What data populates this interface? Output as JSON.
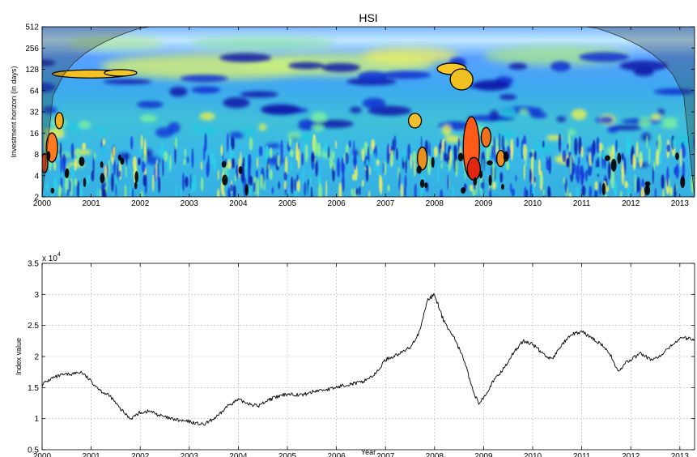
{
  "chart_data": [
    {
      "type": "heatmap",
      "title": "HSI",
      "xlabel": "",
      "ylabel": "Investment horizon (in days)",
      "xlim": [
        2000,
        2013.3
      ],
      "x_ticks": [
        "2000",
        "2001",
        "2002",
        "2003",
        "2004",
        "2005",
        "2006",
        "2007",
        "2008",
        "2009",
        "2010",
        "2011",
        "2012",
        "2013"
      ],
      "y_scale": "log2",
      "ylim": [
        2,
        512
      ],
      "y_ticks": [
        "2",
        "4",
        "8",
        "16",
        "32",
        "64",
        "128",
        "256",
        "512"
      ],
      "colormap": "jet",
      "cone_of_influence": true,
      "significant_regions": [
        {
          "year": 2000.1,
          "period": 10
        },
        {
          "year": 2000.3,
          "period": 24
        },
        {
          "year": 2000.8,
          "period": 110
        },
        {
          "year": 2001.5,
          "period": 115
        },
        {
          "year": 2007.6,
          "period": 24
        },
        {
          "year": 2008.2,
          "period": 130
        },
        {
          "year": 2008.5,
          "period": 96
        },
        {
          "year": 2008.6,
          "period": 6
        },
        {
          "year": 2008.9,
          "period": 12
        }
      ]
    },
    {
      "type": "line",
      "title": "",
      "xlabel": "Year",
      "ylabel": "Index value",
      "y_multiplier": "x 10",
      "y_exponent": "4",
      "xlim": [
        2000,
        2013.3
      ],
      "ylim": [
        0.5,
        3.5
      ],
      "x_ticks": [
        "2000",
        "2001",
        "2002",
        "2003",
        "2004",
        "2005",
        "2006",
        "2007",
        "2008",
        "2009",
        "2010",
        "2011",
        "2012",
        "2013"
      ],
      "y_ticks": [
        "0.5",
        "1",
        "1.5",
        "2",
        "2.5",
        "3",
        "3.5"
      ],
      "grid": true,
      "series": [
        {
          "color": "#000000",
          "x": [
            2000.0,
            2000.2,
            2000.4,
            2000.6,
            2000.8,
            2001.0,
            2001.2,
            2001.4,
            2001.6,
            2001.8,
            2002.0,
            2002.2,
            2002.4,
            2002.6,
            2002.8,
            2003.0,
            2003.3,
            2003.6,
            2003.8,
            2004.0,
            2004.2,
            2004.4,
            2004.6,
            2004.8,
            2005.0,
            2005.3,
            2005.6,
            2005.9,
            2006.2,
            2006.5,
            2006.8,
            2007.0,
            2007.3,
            2007.5,
            2007.7,
            2007.85,
            2008.0,
            2008.2,
            2008.4,
            2008.6,
            2008.8,
            2008.9,
            2009.0,
            2009.2,
            2009.4,
            2009.6,
            2009.8,
            2010.0,
            2010.2,
            2010.4,
            2010.6,
            2010.8,
            2011.0,
            2011.2,
            2011.4,
            2011.6,
            2011.75,
            2011.9,
            2012.0,
            2012.2,
            2012.4,
            2012.6,
            2012.8,
            2013.0,
            2013.3
          ],
          "y": [
            1.55,
            1.65,
            1.7,
            1.72,
            1.75,
            1.6,
            1.45,
            1.35,
            1.15,
            1.0,
            1.1,
            1.12,
            1.05,
            1.0,
            0.97,
            0.95,
            0.9,
            1.05,
            1.22,
            1.3,
            1.25,
            1.2,
            1.3,
            1.35,
            1.4,
            1.38,
            1.45,
            1.48,
            1.55,
            1.58,
            1.72,
            1.95,
            2.05,
            2.15,
            2.4,
            2.9,
            3.0,
            2.55,
            2.3,
            1.95,
            1.4,
            1.25,
            1.35,
            1.6,
            1.8,
            2.05,
            2.25,
            2.2,
            2.05,
            1.95,
            2.2,
            2.35,
            2.4,
            2.3,
            2.2,
            2.0,
            1.75,
            1.9,
            1.95,
            2.05,
            1.95,
            2.0,
            2.15,
            2.3,
            2.28
          ]
        }
      ]
    }
  ]
}
